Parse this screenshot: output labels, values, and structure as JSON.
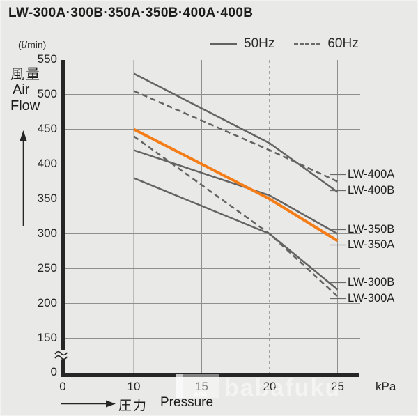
{
  "title": "LW-300A·300B·350A·350B·400A·400B",
  "colors": {
    "background": "#e9e9e7",
    "curve_gray": "#636363",
    "highlight_orange": "#f57d17",
    "grid_gray": "#8f8f8f",
    "axis_black": "#262626"
  },
  "legend": {
    "items": [
      {
        "label": "50Hz",
        "style": "solid"
      },
      {
        "label": "60Hz",
        "style": "dashed"
      }
    ]
  },
  "y_axis": {
    "unit": "(ℓ/min)",
    "name_jp": "風量",
    "name_en_line1": "Air",
    "name_en_line2": "Flow",
    "ticks": [
      550,
      500,
      450,
      400,
      350,
      300,
      250,
      200,
      150
    ],
    "origin_label": "0",
    "has_break": true
  },
  "x_axis": {
    "ticks": [
      0,
      10,
      15,
      20,
      25
    ],
    "unit": "kPa",
    "name_jp": "圧力",
    "name_en": "Pressure"
  },
  "chart_data": {
    "type": "line",
    "title": "LW-300A·300B·350A·350B·400A·400B",
    "xlabel": "圧力 Pressure (kPa)",
    "ylabel": "風量 Air Flow (ℓ/min)",
    "x_ticks": [
      0,
      10,
      15,
      20,
      25
    ],
    "y_ticks": [
      550,
      500,
      450,
      400,
      350,
      300,
      250,
      200,
      150
    ],
    "ylim_main": [
      150,
      550
    ],
    "y_axis_break_to_zero": true,
    "grid": true,
    "legend_position": "top",
    "series": [
      {
        "name": "LW-400B",
        "frequency": "50Hz",
        "style": "solid",
        "color": "#636363",
        "highlight": false,
        "points": [
          [
            10,
            530
          ],
          [
            20,
            430
          ],
          [
            25,
            360
          ]
        ]
      },
      {
        "name": "LW-400A",
        "frequency": "60Hz",
        "style": "dashed",
        "color": "#636363",
        "highlight": false,
        "points": [
          [
            10,
            505
          ],
          [
            20,
            420
          ],
          [
            25,
            375
          ]
        ]
      },
      {
        "name": "LW-350B",
        "frequency": "50Hz",
        "style": "solid",
        "color": "#636363",
        "highlight": false,
        "points": [
          [
            10,
            420
          ],
          [
            20,
            355
          ],
          [
            25,
            300
          ]
        ]
      },
      {
        "name": "LW-350A",
        "frequency": "60Hz",
        "style": "solid",
        "color": "#f57d17",
        "highlight": true,
        "points": [
          [
            10,
            450
          ],
          [
            20,
            350
          ],
          [
            25,
            290
          ]
        ]
      },
      {
        "name": "LW-300B",
        "frequency": "50Hz",
        "style": "solid",
        "color": "#636363",
        "highlight": false,
        "points": [
          [
            10,
            380
          ],
          [
            20,
            300
          ],
          [
            25,
            220
          ]
        ]
      },
      {
        "name": "LW-300A",
        "frequency": "60Hz",
        "style": "dashed",
        "color": "#636363",
        "highlight": false,
        "points": [
          [
            10,
            440
          ],
          [
            20,
            300
          ],
          [
            25,
            210
          ]
        ]
      }
    ]
  },
  "series_labels": [
    {
      "text": "LW-400A",
      "anchor_flow": 385
    },
    {
      "text": "LW-400B",
      "anchor_flow": 362
    },
    {
      "text": "LW-350B",
      "anchor_flow": 306
    },
    {
      "text": "LW-350A",
      "anchor_flow": 284
    },
    {
      "text": "LW-300B",
      "anchor_flow": 230
    },
    {
      "text": "LW-300A",
      "anchor_flow": 207
    }
  ],
  "watermark": {
    "text": "babafuku",
    "logo_text": "ABA"
  }
}
